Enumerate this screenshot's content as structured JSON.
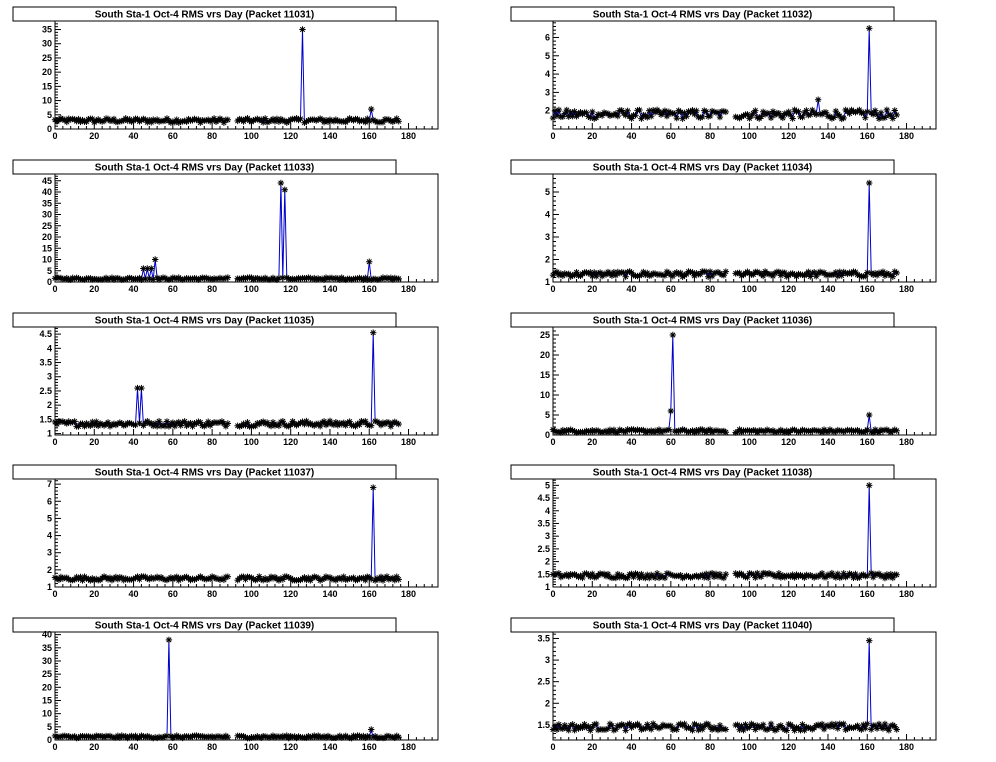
{
  "colors": {
    "background": "#ffffff",
    "frame": "#000000",
    "series_line": "#0000cc",
    "markers": "#000000"
  },
  "chart_data": [
    {
      "type": "line",
      "title": "South Sta-1 Oct-4 RMS vrs Day (Packet 11031)",
      "xlim": [
        0,
        195
      ],
      "ylim": [
        0,
        38
      ],
      "xticks": [
        0,
        20,
        40,
        60,
        80,
        100,
        120,
        140,
        160,
        180
      ],
      "yticks": [
        0,
        5,
        10,
        15,
        20,
        25,
        30,
        35
      ],
      "baseline": 3,
      "noise": 0.8,
      "gaps": [
        [
          89,
          92
        ]
      ],
      "x_end": 175,
      "spikes": [
        {
          "x": 126,
          "y": 35
        },
        {
          "x": 161,
          "y": 7
        }
      ],
      "grid": false,
      "legend": false
    },
    {
      "type": "line",
      "title": "South Sta-1 Oct-4 RMS vrs Day (Packet 11032)",
      "xlim": [
        0,
        195
      ],
      "ylim": [
        1,
        6.9
      ],
      "xticks": [
        0,
        20,
        40,
        60,
        80,
        100,
        120,
        140,
        160,
        180
      ],
      "yticks": [
        2,
        3,
        4,
        5,
        6
      ],
      "baseline": 1.8,
      "noise": 0.25,
      "gaps": [
        [
          89,
          92
        ]
      ],
      "x_end": 175,
      "spikes": [
        {
          "x": 135,
          "y": 2.6
        },
        {
          "x": 161,
          "y": 6.5
        }
      ],
      "grid": false,
      "legend": false
    },
    {
      "type": "line",
      "title": "South Sta-1 Oct-4 RMS vrs Day (Packet 11033)",
      "xlim": [
        0,
        195
      ],
      "ylim": [
        0,
        48
      ],
      "xticks": [
        0,
        20,
        40,
        60,
        80,
        100,
        120,
        140,
        160,
        180
      ],
      "yticks": [
        0,
        5,
        10,
        15,
        20,
        25,
        30,
        35,
        40,
        45
      ],
      "baseline": 1.5,
      "noise": 0.5,
      "gaps": [
        [
          89,
          92
        ]
      ],
      "x_end": 175,
      "spikes": [
        {
          "x": 45,
          "y": 6
        },
        {
          "x": 47,
          "y": 6
        },
        {
          "x": 49,
          "y": 6
        },
        {
          "x": 51,
          "y": 10
        },
        {
          "x": 115,
          "y": 44
        },
        {
          "x": 117,
          "y": 41
        },
        {
          "x": 160,
          "y": 9
        }
      ],
      "grid": false,
      "legend": false
    },
    {
      "type": "line",
      "title": "South Sta-1 Oct-4 RMS vrs Day (Packet 11034)",
      "xlim": [
        0,
        195
      ],
      "ylim": [
        1,
        5.8
      ],
      "xticks": [
        0,
        20,
        40,
        60,
        80,
        100,
        120,
        140,
        160,
        180
      ],
      "yticks": [
        1,
        2,
        3,
        4,
        5
      ],
      "baseline": 1.35,
      "noise": 0.12,
      "gaps": [
        [
          89,
          92
        ]
      ],
      "x_end": 175,
      "spikes": [
        {
          "x": 161,
          "y": 5.4
        }
      ],
      "grid": false,
      "legend": false
    },
    {
      "type": "line",
      "title": "South Sta-1 Oct-4 RMS vrs Day (Packet 11035)",
      "xlim": [
        0,
        195
      ],
      "ylim": [
        0.95,
        4.75
      ],
      "xticks": [
        0,
        20,
        40,
        60,
        80,
        100,
        120,
        140,
        160,
        180
      ],
      "yticks": [
        1,
        1.5,
        2,
        2.5,
        3,
        3.5,
        4,
        4.5
      ],
      "ytick_labels": [
        "1",
        "1.5",
        "2",
        "2.5",
        "3",
        "3.5",
        "4",
        "4.5"
      ],
      "baseline": 1.35,
      "noise": 0.1,
      "gaps": [
        [
          89,
          92
        ]
      ],
      "x_end": 175,
      "spikes": [
        {
          "x": 42,
          "y": 2.6
        },
        {
          "x": 44,
          "y": 2.6
        },
        {
          "x": 162,
          "y": 4.55
        }
      ],
      "grid": false,
      "legend": false
    },
    {
      "type": "line",
      "title": "South Sta-1 Oct-4 RMS vrs Day (Packet 11036)",
      "xlim": [
        0,
        195
      ],
      "ylim": [
        0,
        27
      ],
      "xticks": [
        0,
        20,
        40,
        60,
        80,
        100,
        120,
        140,
        160,
        180
      ],
      "yticks": [
        0,
        5,
        10,
        15,
        20,
        25
      ],
      "baseline": 1,
      "noise": 0.4,
      "gaps": [
        [
          89,
          92
        ]
      ],
      "x_end": 175,
      "spikes": [
        {
          "x": 60,
          "y": 6
        },
        {
          "x": 61,
          "y": 25
        },
        {
          "x": 161,
          "y": 5
        }
      ],
      "grid": false,
      "legend": false
    },
    {
      "type": "line",
      "title": "South Sta-1 Oct-4 RMS vrs Day (Packet 11037)",
      "xlim": [
        0,
        195
      ],
      "ylim": [
        1,
        7.3
      ],
      "xticks": [
        0,
        20,
        40,
        60,
        80,
        100,
        120,
        140,
        160,
        180
      ],
      "yticks": [
        1,
        2,
        3,
        4,
        5,
        6,
        7
      ],
      "baseline": 1.5,
      "noise": 0.12,
      "gaps": [
        [
          89,
          92
        ]
      ],
      "x_end": 175,
      "spikes": [
        {
          "x": 162,
          "y": 6.8
        }
      ],
      "grid": false,
      "legend": false
    },
    {
      "type": "line",
      "title": "South Sta-1 Oct-4 RMS vrs Day (Packet 11038)",
      "xlim": [
        0,
        195
      ],
      "ylim": [
        1,
        5.25
      ],
      "xticks": [
        0,
        20,
        40,
        60,
        80,
        100,
        120,
        140,
        160,
        180
      ],
      "yticks": [
        1,
        1.5,
        2,
        2.5,
        3,
        3.5,
        4,
        4.5,
        5
      ],
      "ytick_labels": [
        "1",
        "1.5",
        "2",
        "2.5",
        "3",
        "3.5",
        "4",
        "4.5",
        "5"
      ],
      "baseline": 1.45,
      "noise": 0.1,
      "gaps": [
        [
          89,
          92
        ]
      ],
      "x_end": 175,
      "spikes": [
        {
          "x": 161,
          "y": 5
        }
      ],
      "grid": false,
      "legend": false
    },
    {
      "type": "line",
      "title": "South Sta-1 Oct-4 RMS vrs Day (Packet 11039)",
      "xlim": [
        0,
        195
      ],
      "ylim": [
        0,
        41
      ],
      "xticks": [
        0,
        20,
        40,
        60,
        80,
        100,
        120,
        140,
        160,
        180
      ],
      "yticks": [
        0,
        5,
        10,
        15,
        20,
        25,
        30,
        35,
        40
      ],
      "baseline": 1.2,
      "noise": 0.5,
      "gaps": [
        [
          89,
          92
        ]
      ],
      "x_end": 175,
      "spikes": [
        {
          "x": 58,
          "y": 38
        },
        {
          "x": 161,
          "y": 4
        }
      ],
      "grid": false,
      "legend": false
    },
    {
      "type": "line",
      "title": "South Sta-1 Oct-4 RMS vrs Day (Packet 11040)",
      "xlim": [
        0,
        195
      ],
      "ylim": [
        1.15,
        3.65
      ],
      "xticks": [
        0,
        20,
        40,
        60,
        80,
        100,
        120,
        140,
        160,
        180
      ],
      "yticks": [
        1.5,
        2,
        2.5,
        3,
        3.5
      ],
      "ytick_labels": [
        "1.5",
        "2",
        "2.5",
        "3",
        "3.5"
      ],
      "baseline": 1.45,
      "noise": 0.08,
      "gaps": [
        [
          89,
          92
        ]
      ],
      "x_end": 175,
      "spikes": [
        {
          "x": 161,
          "y": 3.45
        }
      ],
      "grid": false,
      "legend": false
    }
  ]
}
